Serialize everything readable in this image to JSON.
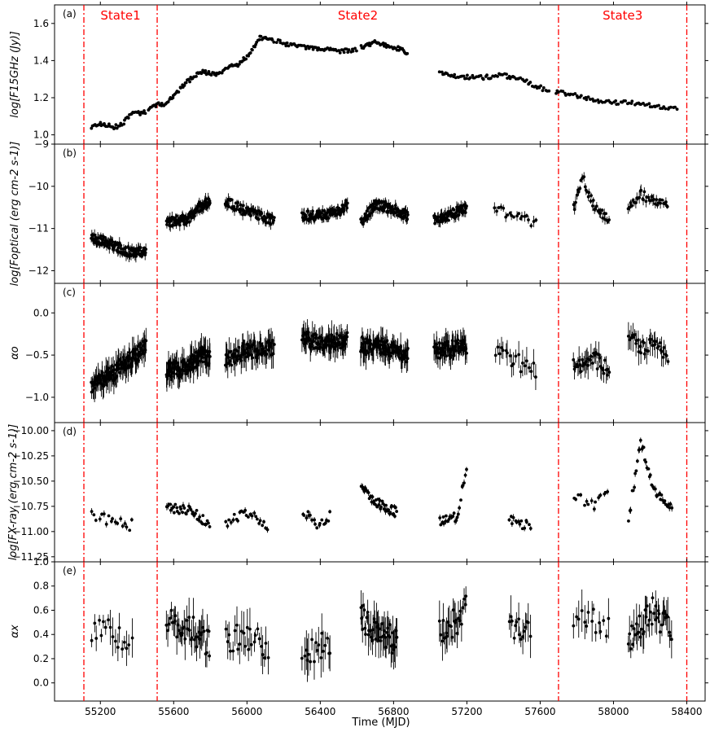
{
  "figure": {
    "xlabel": "Time (MJD)",
    "xlim": [
      54950,
      58500
    ],
    "xticks": [
      55200,
      55600,
      56000,
      56400,
      56800,
      57200,
      57600,
      58000,
      58400
    ],
    "marker_color": "#000000",
    "state_line_color": "#ff0000",
    "state_boundaries": [
      55110,
      55510,
      57700,
      58400
    ],
    "states": [
      {
        "label": "State1",
        "x": 55310
      },
      {
        "label": "State2",
        "x": 56605
      },
      {
        "label": "State3",
        "x": 58050
      }
    ]
  },
  "chart_data": [
    {
      "type": "scatter",
      "panel": "(a)",
      "ylabel": "log[F15GHz (Jy)]",
      "ylim": [
        0.95,
        1.7
      ],
      "yticks": [
        1.0,
        1.2,
        1.4,
        1.6
      ],
      "ytick_labels": [
        "1.0",
        "1.2",
        "1.4",
        "1.6"
      ],
      "grid": false,
      "knots": [
        [
          55150,
          1.04
        ],
        [
          55200,
          1.06
        ],
        [
          55280,
          1.04
        ],
        [
          55330,
          1.07
        ],
        [
          55380,
          1.12
        ],
        [
          55440,
          1.12
        ],
        [
          55480,
          1.15
        ],
        [
          55550,
          1.17
        ],
        [
          55600,
          1.21
        ],
        [
          55680,
          1.29
        ],
        [
          55750,
          1.34
        ],
        [
          55800,
          1.33
        ],
        [
          55850,
          1.33
        ],
        [
          55900,
          1.36
        ],
        [
          55950,
          1.38
        ],
        [
          56000,
          1.42
        ],
        [
          56040,
          1.48
        ],
        [
          56070,
          1.52
        ],
        [
          56120,
          1.52
        ],
        [
          56200,
          1.49
        ],
        [
          56300,
          1.47
        ],
        [
          56400,
          1.46
        ],
        [
          56500,
          1.45
        ],
        [
          56600,
          1.46
        ],
        [
          56700,
          1.5
        ],
        [
          56760,
          1.48
        ],
        [
          56850,
          1.46
        ],
        [
          57000,
          1.36
        ],
        [
          57100,
          1.32
        ],
        [
          57200,
          1.31
        ],
        [
          57300,
          1.31
        ],
        [
          57400,
          1.32
        ],
        [
          57500,
          1.3
        ],
        [
          57580,
          1.26
        ],
        [
          57680,
          1.23
        ],
        [
          57800,
          1.21
        ],
        [
          57950,
          1.18
        ],
        [
          58100,
          1.17
        ],
        [
          58200,
          1.16
        ],
        [
          58300,
          1.14
        ],
        [
          58350,
          1.15
        ]
      ],
      "noise": 0.012,
      "segments": [
        [
          55150,
          55450,
          45
        ],
        [
          55460,
          56150,
          120
        ],
        [
          56160,
          56600,
          60
        ],
        [
          56620,
          56880,
          45
        ],
        [
          57050,
          57650,
          75
        ],
        [
          57680,
          58350,
          70
        ]
      ],
      "yerr": 0.004,
      "seed": 11
    },
    {
      "type": "scatter",
      "panel": "(b)",
      "ylabel": "log[Foptical (erg cm-2 s-1)]",
      "ylim": [
        -12.3,
        -9.0
      ],
      "yticks": [
        -12,
        -11,
        -10,
        -9
      ],
      "ytick_labels": [
        "−12",
        "−11",
        "−10",
        "−9"
      ],
      "grid": false,
      "knots": [
        [
          55150,
          -11.2
        ],
        [
          55250,
          -11.35
        ],
        [
          55350,
          -11.55
        ],
        [
          55450,
          -11.55
        ],
        [
          55560,
          -10.85
        ],
        [
          55650,
          -10.8
        ],
        [
          55700,
          -10.7
        ],
        [
          55750,
          -10.45
        ],
        [
          55800,
          -10.35
        ],
        [
          55900,
          -10.4
        ],
        [
          56000,
          -10.6
        ],
        [
          56100,
          -10.75
        ],
        [
          56150,
          -10.8
        ],
        [
          56300,
          -10.7
        ],
        [
          56400,
          -10.7
        ],
        [
          56500,
          -10.6
        ],
        [
          56550,
          -10.4
        ],
        [
          56620,
          -10.9
        ],
        [
          56700,
          -10.4
        ],
        [
          56800,
          -10.55
        ],
        [
          56900,
          -10.75
        ],
        [
          57050,
          -10.8
        ],
        [
          57100,
          -10.7
        ],
        [
          57150,
          -10.6
        ],
        [
          57200,
          -10.5
        ],
        [
          57350,
          -10.5
        ],
        [
          57450,
          -10.7
        ],
        [
          57550,
          -10.85
        ],
        [
          57580,
          -10.9
        ],
        [
          57780,
          -10.6
        ],
        [
          57830,
          -9.8
        ],
        [
          57900,
          -10.5
        ],
        [
          57980,
          -10.8
        ],
        [
          58080,
          -10.5
        ],
        [
          58150,
          -10.2
        ],
        [
          58250,
          -10.4
        ],
        [
          58300,
          -10.5
        ]
      ],
      "noise": 0.12,
      "segments": [
        [
          55150,
          55450,
          120
        ],
        [
          55560,
          55800,
          110
        ],
        [
          55880,
          56150,
          80
        ],
        [
          56300,
          56550,
          90
        ],
        [
          56620,
          56880,
          110
        ],
        [
          57020,
          57200,
          70
        ],
        [
          57350,
          57580,
          20
        ],
        [
          57780,
          57980,
          35
        ],
        [
          58080,
          58300,
          35
        ]
      ],
      "yerr": 0.08,
      "seed": 23
    },
    {
      "type": "scatter",
      "panel": "(c)",
      "ylabel": "αo",
      "ylim": [
        -1.3,
        0.35
      ],
      "yticks": [
        -1.0,
        -0.5,
        0.0
      ],
      "ytick_labels": [
        "−1.0",
        "−0.5",
        "0.0"
      ],
      "grid": false,
      "knots": [
        [
          55150,
          -0.85
        ],
        [
          55250,
          -0.75
        ],
        [
          55300,
          -0.65
        ],
        [
          55400,
          -0.5
        ],
        [
          55450,
          -0.4
        ],
        [
          55560,
          -0.7
        ],
        [
          55650,
          -0.65
        ],
        [
          55750,
          -0.5
        ],
        [
          55800,
          -0.55
        ],
        [
          55900,
          -0.55
        ],
        [
          56000,
          -0.45
        ],
        [
          56150,
          -0.4
        ],
        [
          56300,
          -0.3
        ],
        [
          56450,
          -0.35
        ],
        [
          56550,
          -0.3
        ],
        [
          56650,
          -0.4
        ],
        [
          56750,
          -0.4
        ],
        [
          56880,
          -0.5
        ],
        [
          57050,
          -0.45
        ],
        [
          57200,
          -0.4
        ],
        [
          57350,
          -0.4
        ],
        [
          57450,
          -0.55
        ],
        [
          57580,
          -0.7
        ],
        [
          57780,
          -0.65
        ],
        [
          57900,
          -0.55
        ],
        [
          57980,
          -0.7
        ],
        [
          58080,
          -0.3
        ],
        [
          58150,
          -0.4
        ],
        [
          58250,
          -0.35
        ],
        [
          58300,
          -0.55
        ]
      ],
      "noise": 0.1,
      "segments": [
        [
          55150,
          55450,
          120
        ],
        [
          55560,
          55800,
          110
        ],
        [
          55880,
          56150,
          80
        ],
        [
          56300,
          56550,
          90
        ],
        [
          56620,
          56880,
          110
        ],
        [
          57020,
          57200,
          70
        ],
        [
          57350,
          57580,
          20
        ],
        [
          57780,
          57980,
          35
        ],
        [
          58080,
          58300,
          35
        ]
      ],
      "yerr": 0.1,
      "seed": 37
    },
    {
      "type": "scatter",
      "panel": "(d)",
      "ylabel": "log[FX-ray (erg cm-2 s-1)]",
      "ylim": [
        -11.3,
        -9.92
      ],
      "yticks": [
        -11.25,
        -11.0,
        -10.75,
        -10.5,
        -10.25,
        -10.0
      ],
      "ytick_labels": [
        "−11.25",
        "−11.00",
        "−10.75",
        "−10.50",
        "−10.25",
        "−10.00"
      ],
      "grid": false,
      "knots": [
        [
          55150,
          -10.85
        ],
        [
          55300,
          -10.9
        ],
        [
          55350,
          -10.95
        ],
        [
          55560,
          -10.75
        ],
        [
          55700,
          -10.8
        ],
        [
          55800,
          -10.95
        ],
        [
          55900,
          -10.9
        ],
        [
          56000,
          -10.8
        ],
        [
          56100,
          -10.95
        ],
        [
          56300,
          -10.8
        ],
        [
          56400,
          -10.95
        ],
        [
          56450,
          -10.85
        ],
        [
          56620,
          -10.55
        ],
        [
          56700,
          -10.7
        ],
        [
          56800,
          -10.8
        ],
        [
          57050,
          -10.9
        ],
        [
          57150,
          -10.85
        ],
        [
          57200,
          -10.35
        ],
        [
          57450,
          -10.9
        ],
        [
          57550,
          -10.95
        ],
        [
          57780,
          -10.65
        ],
        [
          57900,
          -10.75
        ],
        [
          57980,
          -10.55
        ],
        [
          58080,
          -10.9
        ],
        [
          58150,
          -10.1
        ],
        [
          58220,
          -10.6
        ],
        [
          58300,
          -10.75
        ]
      ],
      "noise": 0.05,
      "segments": [
        [
          55150,
          55380,
          18
        ],
        [
          55560,
          55800,
          40
        ],
        [
          55880,
          56120,
          25
        ],
        [
          56300,
          56460,
          18
        ],
        [
          56620,
          56820,
          45
        ],
        [
          57050,
          57200,
          25
        ],
        [
          57430,
          57550,
          15
        ],
        [
          57780,
          57980,
          15
        ],
        [
          58080,
          58320,
          40
        ]
      ],
      "yerr": 0.02,
      "seed": 41
    },
    {
      "type": "scatter",
      "panel": "(e)",
      "ylabel": "αx",
      "xlabel": "Time (MJD)",
      "ylim": [
        -0.15,
        1.0
      ],
      "yticks": [
        0.0,
        0.2,
        0.4,
        0.6,
        0.8,
        1.0
      ],
      "ytick_labels": [
        "0.0",
        "0.2",
        "0.4",
        "0.6",
        "0.8",
        "1.0"
      ],
      "grid": false,
      "knots": [
        [
          55150,
          0.45
        ],
        [
          55300,
          0.4
        ],
        [
          55380,
          0.35
        ],
        [
          55560,
          0.5
        ],
        [
          55700,
          0.45
        ],
        [
          55800,
          0.3
        ],
        [
          55900,
          0.35
        ],
        [
          56000,
          0.4
        ],
        [
          56100,
          0.3
        ],
        [
          56300,
          0.25
        ],
        [
          56400,
          0.3
        ],
        [
          56450,
          0.35
        ],
        [
          56620,
          0.55
        ],
        [
          56700,
          0.45
        ],
        [
          56800,
          0.35
        ],
        [
          57050,
          0.45
        ],
        [
          57150,
          0.5
        ],
        [
          57200,
          0.65
        ],
        [
          57450,
          0.45
        ],
        [
          57550,
          0.5
        ],
        [
          57780,
          0.55
        ],
        [
          57900,
          0.5
        ],
        [
          57980,
          0.45
        ],
        [
          58080,
          0.35
        ],
        [
          58150,
          0.45
        ],
        [
          58220,
          0.6
        ],
        [
          58300,
          0.45
        ]
      ],
      "noise": 0.12,
      "segments": [
        [
          55150,
          55380,
          18
        ],
        [
          55560,
          55800,
          40
        ],
        [
          55880,
          56120,
          25
        ],
        [
          56300,
          56460,
          18
        ],
        [
          56620,
          56820,
          45
        ],
        [
          57050,
          57200,
          25
        ],
        [
          57430,
          57550,
          15
        ],
        [
          57780,
          57980,
          15
        ],
        [
          58080,
          58320,
          40
        ]
      ],
      "yerr": 0.1,
      "seed": 53
    }
  ]
}
